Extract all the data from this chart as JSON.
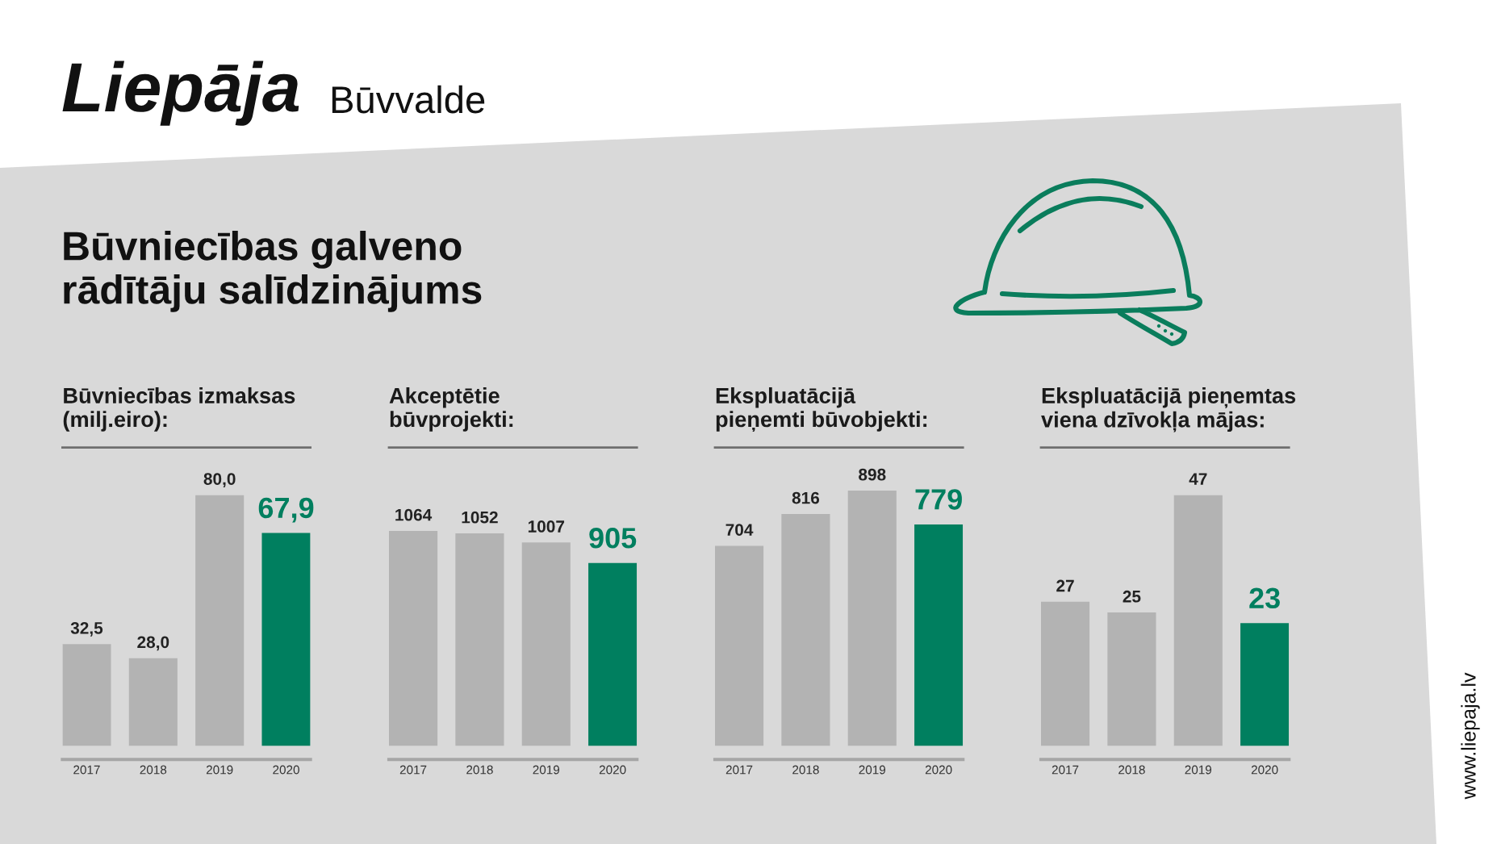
{
  "chart_data": [
    {
      "type": "other",
      "title": "Būvniecības galveno\nrādītāju salīdzinājums",
      "annotations": [
        "Liepāja",
        "Būvvalde",
        "www.liepaja.lv"
      ]
    },
    {
      "type": "bar",
      "title": "Būvniecības izmaksas\n(milj.eiro):",
      "categories": [
        "2017",
        "2018",
        "2019",
        "2020"
      ],
      "values": [
        32.5,
        28.0,
        80.0,
        67.9
      ],
      "colors": [
        "#b3b3b3",
        "#b3b3b3",
        "#b3b3b3",
        "#007f5f"
      ],
      "value_labels": [
        "32,5",
        "28,0",
        "80,0",
        "67,9"
      ],
      "tick_labels": "x"
    },
    {
      "type": "bar",
      "title": "Akceptētie\nbūvprojekti:",
      "categories": [
        "2017",
        "2018",
        "2019",
        "2020"
      ],
      "values": [
        1064,
        1052,
        1007,
        905
      ],
      "colors": [
        "#b3b3b3",
        "#b3b3b3",
        "#b3b3b3",
        "#007f5f"
      ],
      "data_labels": true,
      "tick_labels": "x"
    },
    {
      "type": "bar",
      "title": "Ekspluatācijā\npieņemti būvobjekti:",
      "categories": [
        "2017",
        "2018",
        "2019",
        "2020"
      ],
      "values": [
        704,
        816,
        898,
        779
      ],
      "colors": [
        "#b3b3b3",
        "#b3b3b3",
        "#b3b3b3",
        "#007f5f"
      ],
      "data_labels": true,
      "tick_labels": "x"
    },
    {
      "type": "bar",
      "title": "Ekspluatācijā pieņemtas\nviena dzīvokļa mājas:",
      "categories": [
        "2017",
        "2018",
        "2019",
        "2020"
      ],
      "values": [
        27,
        25,
        47,
        23
      ],
      "colors": [
        "#b3b3b3",
        "#b3b3b3",
        "#b3b3b3",
        "#007f5f"
      ],
      "data_labels": true,
      "tick_labels": "x"
    }
  ]
}
